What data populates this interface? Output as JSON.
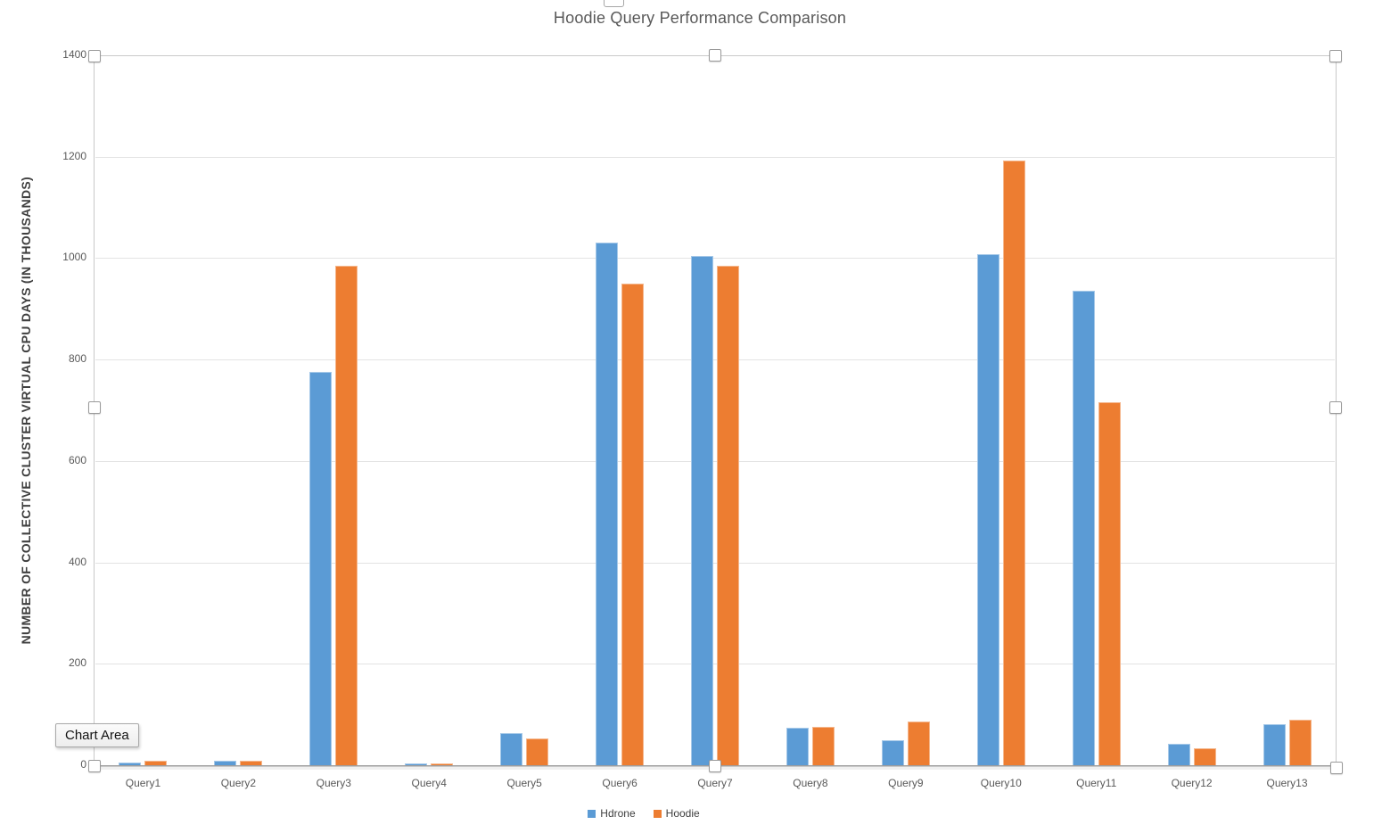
{
  "chart_data": {
    "type": "bar",
    "title": "Hoodie Query Performance Comparison",
    "xlabel": "",
    "ylabel": "NUMBER OF COLLECTIVE CLUSTER VIRTUAL CPU DAYS (IN THOUSANDS)",
    "categories": [
      "Query1",
      "Query2",
      "Query3",
      "Query4",
      "Query5",
      "Query6",
      "Query7",
      "Query8",
      "Query9",
      "Query10",
      "Query11",
      "Query12",
      "Query13"
    ],
    "series": [
      {
        "name": "Hdrone",
        "color": "#5B9BD5",
        "values": [
          5,
          9,
          775,
          4,
          63,
          1030,
          1005,
          74,
          49,
          1008,
          935,
          42,
          81
        ]
      },
      {
        "name": "Hoodie",
        "color": "#ED7D31",
        "values": [
          8,
          8,
          985,
          4,
          52,
          950,
          985,
          75,
          86,
          1192,
          715,
          34,
          90
        ]
      }
    ],
    "ylim": [
      0,
      1400
    ],
    "yticks": [
      0,
      200,
      400,
      600,
      800,
      1000,
      1200,
      1400
    ],
    "grid": true,
    "legend_position": "bottom"
  },
  "tooltip": {
    "label": "Chart Area"
  },
  "colors": {
    "series_hdrone": "#5B9BD5",
    "series_hoodie": "#ED7D31",
    "gridline": "#E3E3E3",
    "axis_line": "#9E9E9E",
    "text": "#595959",
    "selection_border": "#C9C9C9"
  }
}
